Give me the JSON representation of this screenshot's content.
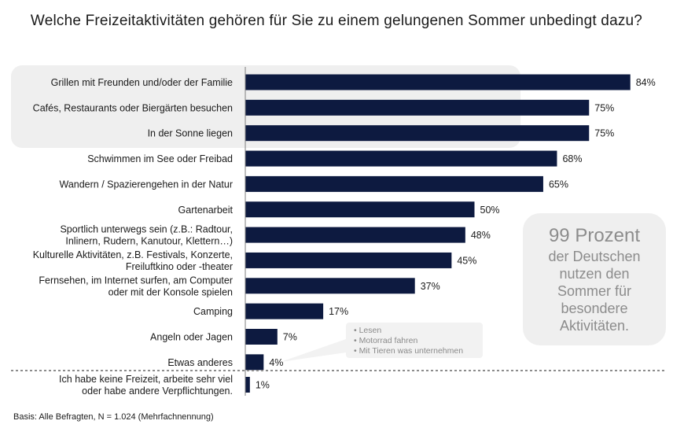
{
  "chart_data": {
    "type": "bar",
    "orientation": "horizontal",
    "title": "Welche Freizeitaktivitäten gehören für Sie zu einem gelungenen  Sommer unbedingt dazu?",
    "unit": "%",
    "xlim": [
      0,
      100
    ],
    "grid": false,
    "bar_color": "#0d1a40",
    "categories": [
      "Grillen mit Freunden und/oder der Familie",
      "Cafés, Restaurants oder Biergärten besuchen",
      "In der Sonne liegen",
      "Schwimmen im See oder Freibad",
      "Wandern / Spazierengehen in der Natur",
      "Gartenarbeit",
      "Sportlich unterwegs sein (z.B.: Radtour,\nInlinern, Rudern, Kanutour, Klettern…)",
      "Kulturelle Aktivitäten, z.B. Festivals, Konzerte,\nFreiluftkino oder -theater",
      "Fernsehen, im Internet surfen, am Computer\noder mit der Konsole spielen",
      "Camping",
      "Angeln oder Jagen",
      "Etwas anderes",
      "Ich habe keine Freizeit, arbeite sehr viel\noder habe andere Verpflichtungen."
    ],
    "values": [
      84,
      75,
      75,
      68,
      65,
      50,
      48,
      45,
      37,
      17,
      7,
      4,
      1
    ],
    "value_labels": [
      "84%",
      "75%",
      "75%",
      "68%",
      "65%",
      "50%",
      "48%",
      "45%",
      "37%",
      "17%",
      "7%",
      "4%",
      "1%"
    ],
    "highlighted_top": 3,
    "annotation_other": [
      "Lesen",
      "Motorrad fahren",
      "Mit Tieren was unternehmen"
    ]
  },
  "callout": {
    "headline": "99 Prozent",
    "body": "der Deutschen\nnutzen  den\nSommer für\nbesondere\nAktivitäten.",
    "background": "#efefef",
    "text_color": "#8c8c8c"
  },
  "footer": {
    "basis": "Basis: Alle Befragten,  N = 1.024  (Mehrfachnennung)"
  }
}
